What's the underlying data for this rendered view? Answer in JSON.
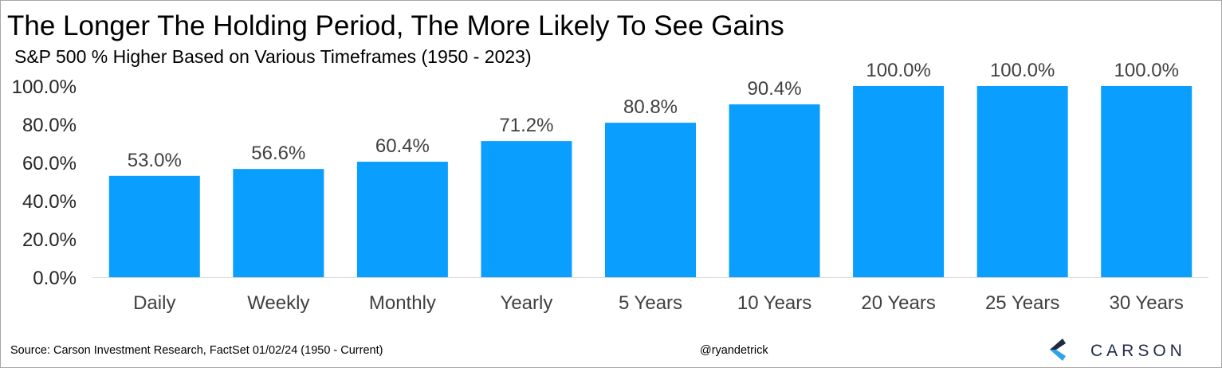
{
  "title": "The Longer The Holding Period, The More Likely To See Gains",
  "subtitle": "S&P 500 % Higher Based on Various Timeframes (1950 - 2023)",
  "footer": {
    "source": "Source: Carson Investment Research, FactSet 01/02/24 (1950 - Current)",
    "handle": "@ryandetrick",
    "logo_text": "CARSON",
    "logo_icon": "carson-chevron-logo-icon"
  },
  "colors": {
    "bar": "#0a9eff",
    "logo_dark": "#1f2a44",
    "logo_light": "#2fa3e8"
  },
  "chart_data": {
    "type": "bar",
    "categories": [
      "Daily",
      "Weekly",
      "Monthly",
      "Yearly",
      "5 Years",
      "10 Years",
      "20 Years",
      "25 Years",
      "30 Years"
    ],
    "values": [
      53.0,
      56.6,
      60.4,
      71.2,
      80.8,
      90.4,
      100.0,
      100.0,
      100.0
    ],
    "data_labels": [
      "53.0%",
      "56.6%",
      "60.4%",
      "71.2%",
      "80.8%",
      "90.4%",
      "100.0%",
      "100.0%",
      "100.0%"
    ],
    "yticks": [
      "0.0%",
      "20.0%",
      "40.0%",
      "60.0%",
      "80.0%",
      "100.0%"
    ],
    "ytick_values": [
      0,
      20,
      40,
      60,
      80,
      100
    ],
    "ylim": [
      0,
      100
    ],
    "xlabel": "",
    "ylabel": "",
    "grid": false,
    "legend": "none"
  }
}
